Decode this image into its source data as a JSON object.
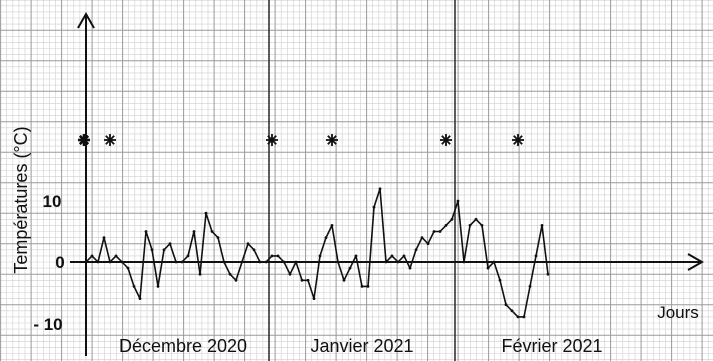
{
  "chart_data": {
    "type": "line",
    "ylabel": "Températures (°C)",
    "xlabel": "Jours",
    "y_ticks": [
      {
        "value": 10,
        "label": "10"
      },
      {
        "value": 0,
        "label": "0"
      },
      {
        "value": -10,
        "label": "- 10"
      }
    ],
    "months": [
      {
        "label": "Décembre 2020",
        "start_day": 0
      },
      {
        "label": "Janvier 2021",
        "start_day": 31
      },
      {
        "label": "Février 2021",
        "start_day": 62
      }
    ],
    "grid": true,
    "star_y": 20,
    "star_days": [
      0,
      4,
      31,
      41,
      60,
      72
    ],
    "series": [
      {
        "x": [
          0,
          1,
          2,
          3,
          4,
          5,
          6,
          7,
          8,
          9,
          10,
          11,
          12,
          13,
          14,
          15,
          16,
          17,
          18,
          19,
          20,
          21,
          22,
          23,
          24,
          25,
          26,
          27,
          28,
          29,
          30,
          31,
          32,
          33,
          34,
          35,
          36,
          37,
          38,
          39,
          40,
          41,
          42,
          43,
          44,
          45,
          46,
          47,
          48,
          49,
          50,
          51,
          52,
          53,
          54,
          55,
          56,
          57,
          58,
          59,
          60,
          61,
          62,
          63,
          64,
          65,
          66,
          67,
          68,
          69,
          70,
          71,
          72,
          73,
          74,
          75,
          76,
          77
        ],
        "y": [
          0,
          1,
          0,
          4,
          0,
          1,
          0,
          -1,
          -4,
          -6,
          5,
          2,
          -4,
          2,
          3,
          0,
          0,
          1,
          5,
          -2,
          8,
          5,
          4,
          0,
          -2,
          -3,
          0,
          3,
          2,
          0,
          0,
          1,
          1,
          0,
          -2,
          0,
          -3,
          -3,
          -6,
          1,
          4,
          6,
          0,
          -3,
          -1,
          1,
          -4,
          -4,
          9,
          12,
          0,
          1,
          0,
          1,
          -1,
          2,
          4,
          3,
          5,
          5,
          6,
          7,
          10,
          0,
          6,
          7,
          6,
          -1,
          0,
          -3,
          -7,
          -8,
          -9,
          -9,
          -4,
          1,
          6,
          -2
        ]
      }
    ]
  }
}
